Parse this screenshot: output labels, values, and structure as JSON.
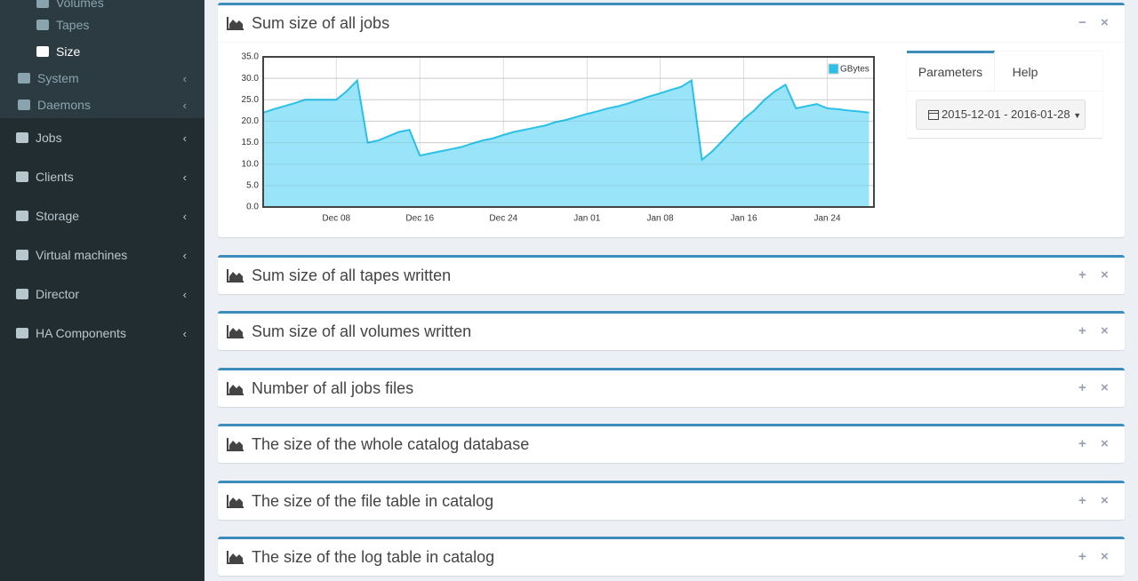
{
  "sidebar": {
    "items": [
      {
        "label": "Volumes",
        "level": 2
      },
      {
        "label": "Tapes",
        "level": 2
      },
      {
        "label": "Size",
        "level": 2,
        "active": true
      },
      {
        "label": "System",
        "level": 1
      },
      {
        "label": "Daemons",
        "level": 1
      },
      {
        "label": "Jobs",
        "level": 0
      },
      {
        "label": "Clients",
        "level": 0
      },
      {
        "label": "Storage",
        "level": 0
      },
      {
        "label": "Virtual machines",
        "level": 0
      },
      {
        "label": "Director",
        "level": 0
      },
      {
        "label": "HA Components",
        "level": 0
      }
    ]
  },
  "panels": [
    {
      "title": "Sum size of all jobs",
      "expanded": true
    },
    {
      "title": "Sum size of all tapes written"
    },
    {
      "title": "Sum size of all volumes written"
    },
    {
      "title": "Number of all jobs files"
    },
    {
      "title": "The size of the whole catalog database"
    },
    {
      "title": "The size of the file table in catalog"
    },
    {
      "title": "The size of the log table in catalog"
    }
  ],
  "parameters": {
    "tabs": [
      "Parameters",
      "Help"
    ],
    "date_range": "2015-12-01 - 2016-01-28"
  },
  "chart_data": {
    "type": "area",
    "x": [
      "Dec 01",
      "Dec 02",
      "Dec 03",
      "Dec 04",
      "Dec 05",
      "Dec 06",
      "Dec 07",
      "Dec 08",
      "Dec 09",
      "Dec 10",
      "Dec 11",
      "Dec 12",
      "Dec 13",
      "Dec 14",
      "Dec 15",
      "Dec 16",
      "Dec 17",
      "Dec 18",
      "Dec 19",
      "Dec 20",
      "Dec 21",
      "Dec 22",
      "Dec 23",
      "Dec 24",
      "Dec 25",
      "Dec 26",
      "Dec 27",
      "Dec 28",
      "Dec 29",
      "Dec 30",
      "Dec 31",
      "Jan 01",
      "Jan 02",
      "Jan 03",
      "Jan 04",
      "Jan 05",
      "Jan 06",
      "Jan 07",
      "Jan 08",
      "Jan 09",
      "Jan 10",
      "Jan 11",
      "Jan 12",
      "Jan 13",
      "Jan 14",
      "Jan 15",
      "Jan 16",
      "Jan 17",
      "Jan 18",
      "Jan 19",
      "Jan 20",
      "Jan 21",
      "Jan 22",
      "Jan 23",
      "Jan 24",
      "Jan 25",
      "Jan 26",
      "Jan 27",
      "Jan 28"
    ],
    "series": [
      {
        "name": "GBytes",
        "color": "#2bc0e8",
        "fill": "#99e4f8",
        "values": [
          22,
          22.8,
          23.5,
          24.2,
          25,
          25,
          25,
          25,
          27,
          29.5,
          15,
          15.5,
          16.5,
          17.5,
          18,
          12,
          12.5,
          13,
          13.5,
          14,
          14.8,
          15.5,
          16,
          16.8,
          17.5,
          18,
          18.5,
          19,
          19.8,
          20.3,
          21,
          21.7,
          22.3,
          23,
          23.5,
          24.2,
          25,
          25.8,
          26.5,
          27.3,
          28,
          29.5,
          11,
          13,
          15.5,
          18,
          20.5,
          22.5,
          25,
          27,
          28.5,
          23,
          23.5,
          24,
          23,
          22.8,
          22.5,
          22.3,
          22
        ]
      }
    ],
    "xticks": [
      "Dec 08",
      "Dec 16",
      "Dec 24",
      "Jan 01",
      "Jan 08",
      "Jan 16",
      "Jan 24"
    ],
    "ylim": [
      0,
      35
    ],
    "yticks": [
      {
        "value": 0,
        "label": "0.0"
      },
      {
        "value": 5,
        "label": "5.0"
      },
      {
        "value": 10,
        "label": "10.0"
      },
      {
        "value": 15,
        "label": "15.0"
      },
      {
        "value": 20,
        "label": "20.0"
      },
      {
        "value": 25,
        "label": "25.0"
      },
      {
        "value": 30,
        "label": "30.0"
      },
      {
        "value": 35,
        "label": "35.0"
      }
    ],
    "grid": true,
    "legend": "top-right"
  }
}
